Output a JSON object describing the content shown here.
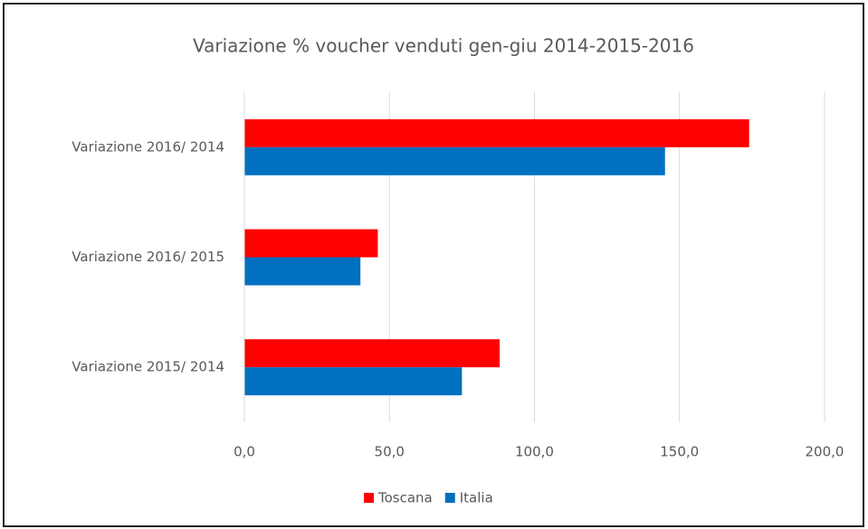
{
  "chart_data": {
    "type": "hbar",
    "title": "Variazione % voucher venduti gen-giu 2014-2015-2016",
    "categories": [
      "Variazione 2016/ 2014",
      "Variazione 2016/ 2015",
      "Variazione 2015/ 2014"
    ],
    "series": [
      {
        "name": "Toscana",
        "color": "#ff0000",
        "values": [
          174,
          46,
          88
        ]
      },
      {
        "name": "Italia",
        "color": "#0070c0",
        "values": [
          145,
          40,
          75
        ]
      }
    ],
    "xlim": [
      0,
      200
    ],
    "xticks": [
      {
        "value": 0,
        "label": "0,0"
      },
      {
        "value": 50,
        "label": "50,0"
      },
      {
        "value": 100,
        "label": "100,0"
      },
      {
        "value": 150,
        "label": "150,0"
      },
      {
        "value": 200,
        "label": "200,0"
      }
    ],
    "grid": true,
    "legend": "bottom"
  }
}
